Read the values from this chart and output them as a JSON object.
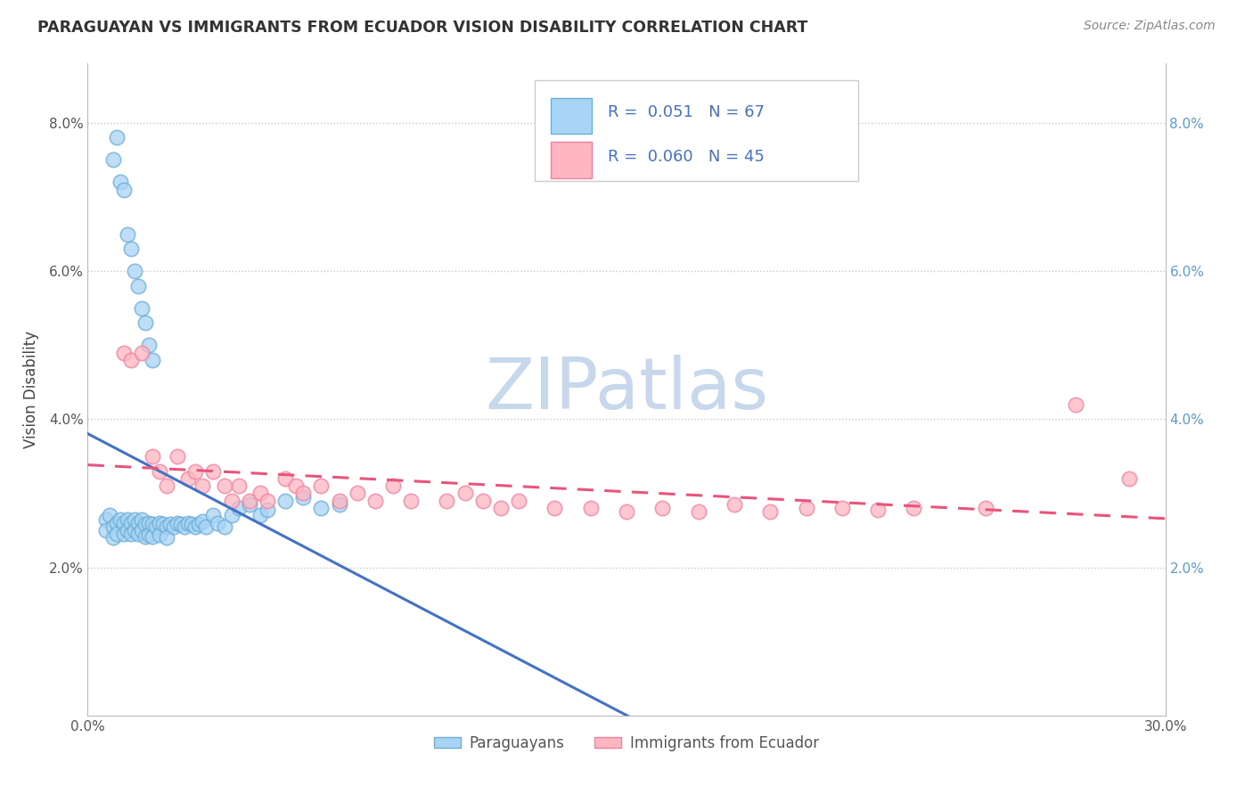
{
  "title": "PARAGUAYAN VS IMMIGRANTS FROM ECUADOR VISION DISABILITY CORRELATION CHART",
  "source": "Source: ZipAtlas.com",
  "ylabel": "Vision Disability",
  "watermark": "ZIPatlas",
  "xlim": [
    0.0,
    0.3
  ],
  "ylim": [
    0.0,
    0.088
  ],
  "paraguayan_color_face": "#a8d4f5",
  "paraguayan_color_edge": "#6baed6",
  "ecuador_color_face": "#ffb6c1",
  "ecuador_color_edge": "#f080a0",
  "trend1_color": "#4472c4",
  "trend2_color": "#e8547a",
  "legend_text_color": "#4472c4",
  "right_axis_color": "#5b9bd5",
  "watermark_color": "#c8d8ec",
  "paraguayan_x": [
    0.005,
    0.005,
    0.006,
    0.007,
    0.007,
    0.008,
    0.008,
    0.009,
    0.01,
    0.01,
    0.011,
    0.011,
    0.012,
    0.012,
    0.013,
    0.013,
    0.014,
    0.014,
    0.015,
    0.015,
    0.016,
    0.016,
    0.017,
    0.017,
    0.018,
    0.018,
    0.019,
    0.02,
    0.02,
    0.021,
    0.022,
    0.022,
    0.023,
    0.024,
    0.025,
    0.026,
    0.027,
    0.028,
    0.029,
    0.03,
    0.031,
    0.032,
    0.033,
    0.035,
    0.036,
    0.038,
    0.04,
    0.042,
    0.045,
    0.048,
    0.05,
    0.055,
    0.06,
    0.065,
    0.07,
    0.007,
    0.008,
    0.009,
    0.01,
    0.011,
    0.012,
    0.013,
    0.014,
    0.015,
    0.016,
    0.017,
    0.018
  ],
  "paraguayan_y": [
    0.0265,
    0.025,
    0.027,
    0.0255,
    0.024,
    0.026,
    0.0245,
    0.0265,
    0.026,
    0.0245,
    0.0265,
    0.025,
    0.026,
    0.0245,
    0.0265,
    0.025,
    0.026,
    0.0245,
    0.0265,
    0.025,
    0.0258,
    0.0242,
    0.026,
    0.0244,
    0.0258,
    0.0242,
    0.0255,
    0.026,
    0.0244,
    0.0258,
    0.0255,
    0.024,
    0.0258,
    0.0255,
    0.026,
    0.0258,
    0.0255,
    0.026,
    0.0258,
    0.0255,
    0.0258,
    0.0262,
    0.0255,
    0.027,
    0.026,
    0.0255,
    0.027,
    0.028,
    0.0285,
    0.027,
    0.0278,
    0.029,
    0.0295,
    0.028,
    0.0285,
    0.075,
    0.078,
    0.072,
    0.071,
    0.065,
    0.063,
    0.06,
    0.058,
    0.055,
    0.053,
    0.05,
    0.048
  ],
  "ecuador_x": [
    0.01,
    0.012,
    0.015,
    0.018,
    0.02,
    0.022,
    0.025,
    0.028,
    0.03,
    0.032,
    0.035,
    0.038,
    0.04,
    0.042,
    0.045,
    0.048,
    0.05,
    0.055,
    0.058,
    0.06,
    0.065,
    0.07,
    0.075,
    0.08,
    0.085,
    0.09,
    0.1,
    0.105,
    0.11,
    0.115,
    0.12,
    0.13,
    0.14,
    0.15,
    0.16,
    0.17,
    0.18,
    0.19,
    0.2,
    0.21,
    0.22,
    0.23,
    0.25,
    0.275,
    0.29
  ],
  "ecuador_y": [
    0.049,
    0.048,
    0.049,
    0.035,
    0.033,
    0.031,
    0.035,
    0.032,
    0.033,
    0.031,
    0.033,
    0.031,
    0.029,
    0.031,
    0.029,
    0.03,
    0.029,
    0.032,
    0.031,
    0.03,
    0.031,
    0.029,
    0.03,
    0.029,
    0.031,
    0.029,
    0.029,
    0.03,
    0.029,
    0.028,
    0.029,
    0.028,
    0.028,
    0.0275,
    0.028,
    0.0275,
    0.0285,
    0.0275,
    0.028,
    0.028,
    0.0278,
    0.028,
    0.028,
    0.042,
    0.032
  ]
}
